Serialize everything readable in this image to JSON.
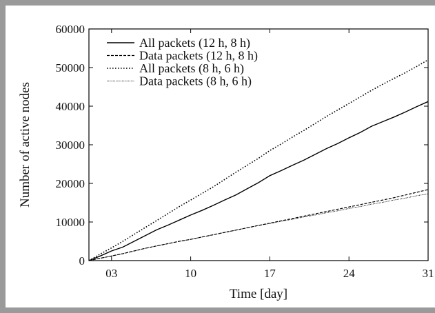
{
  "chart_data": {
    "type": "line",
    "xlabel": "Time [day]",
    "ylabel": "Number of active nodes",
    "xlim": [
      1,
      31
    ],
    "ylim": [
      0,
      60000
    ],
    "x_ticks": [
      {
        "value": 3,
        "label": "03"
      },
      {
        "value": 10,
        "label": "10"
      },
      {
        "value": 17,
        "label": "17"
      },
      {
        "value": 24,
        "label": "24"
      },
      {
        "value": 31,
        "label": "31"
      }
    ],
    "y_ticks": [
      0,
      10000,
      20000,
      30000,
      40000,
      50000,
      60000
    ],
    "legend_position": "top-left",
    "series": [
      {
        "name": "All packets (12 h, 8 h)",
        "style": "solid",
        "x": [
          1,
          2,
          3,
          4,
          5,
          6,
          7,
          8,
          9,
          10,
          11,
          12,
          13,
          14,
          15,
          16,
          17,
          18,
          19,
          20,
          21,
          22,
          23,
          24,
          25,
          26,
          27,
          28,
          29,
          30,
          31
        ],
        "y": [
          0,
          1200,
          2500,
          3500,
          5000,
          6500,
          8000,
          9200,
          10500,
          11800,
          13000,
          14300,
          15700,
          17000,
          18600,
          20200,
          22000,
          23300,
          24700,
          26000,
          27500,
          29000,
          30300,
          31800,
          33200,
          34800,
          36000,
          37200,
          38500,
          39900,
          41200
        ]
      },
      {
        "name": "Data packets (12 h, 8 h)",
        "style": "dashed",
        "x": [
          1,
          2,
          3,
          4,
          5,
          6,
          7,
          8,
          9,
          10,
          11,
          12,
          13,
          14,
          15,
          16,
          17,
          18,
          19,
          20,
          21,
          22,
          23,
          24,
          25,
          26,
          27,
          28,
          29,
          30,
          31
        ],
        "y": [
          0,
          600,
          1200,
          1800,
          2500,
          3200,
          3800,
          4400,
          5000,
          5500,
          6100,
          6700,
          7300,
          7900,
          8500,
          9100,
          9700,
          10300,
          10900,
          11500,
          12100,
          12700,
          13300,
          13900,
          14500,
          15100,
          15700,
          16300,
          17000,
          17700,
          18400
        ]
      },
      {
        "name": "All packets (8 h, 6 h)",
        "style": "dotted",
        "x": [
          1,
          2,
          3,
          4,
          5,
          6,
          7,
          8,
          9,
          10,
          11,
          12,
          13,
          14,
          15,
          16,
          17,
          18,
          19,
          20,
          21,
          22,
          23,
          24,
          25,
          26,
          27,
          28,
          29,
          30,
          31
        ],
        "y": [
          0,
          1700,
          3300,
          5000,
          6800,
          8600,
          10400,
          12200,
          14000,
          15700,
          17400,
          19100,
          21000,
          22900,
          24700,
          26500,
          28500,
          30200,
          32000,
          33700,
          35500,
          37300,
          39000,
          40700,
          42400,
          44100,
          45700,
          47200,
          48700,
          50300,
          52000
        ]
      },
      {
        "name": "Data packets (8 h, 6 h)",
        "style": "fine-dotted",
        "x": [
          1,
          2,
          3,
          4,
          5,
          6,
          7,
          8,
          9,
          10,
          11,
          12,
          13,
          14,
          15,
          16,
          17,
          18,
          19,
          20,
          21,
          22,
          23,
          24,
          25,
          26,
          27,
          28,
          29,
          30,
          31
        ],
        "y": [
          0,
          600,
          1200,
          1800,
          2500,
          3200,
          3800,
          4400,
          5000,
          5500,
          6100,
          6700,
          7300,
          7900,
          8500,
          9100,
          9600,
          10200,
          10700,
          11300,
          11800,
          12400,
          12900,
          13500,
          14000,
          14600,
          15100,
          15700,
          16200,
          16800,
          17300
        ]
      }
    ]
  }
}
